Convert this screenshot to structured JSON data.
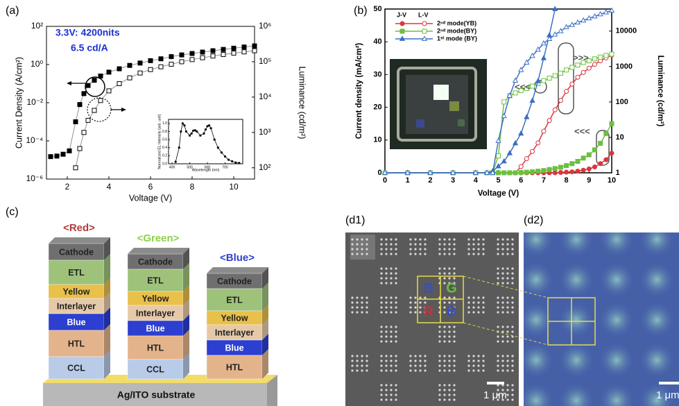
{
  "panel_labels": [
    "(a)",
    "(b)",
    "(c)",
    "(d1)",
    "(d2)"
  ],
  "chart_data": [
    {
      "type": "line",
      "xlabel": "Voltage (V)",
      "ylabel": "Current Density (A/cm²)",
      "y2label": "Luminance (cd/m²)",
      "annotations": [
        "3.3V: 4200nits",
        "6.5 cd/A"
      ],
      "annotation_color": "#1a2fd6",
      "x": [
        1.2,
        1.5,
        1.8,
        2.1,
        2.4,
        2.6,
        2.8,
        3.0,
        3.3,
        3.6,
        4.0,
        4.5,
        5.0,
        5.5,
        6.0,
        6.5,
        7.0,
        7.5,
        8.0,
        8.5,
        9.0,
        9.5,
        10.0,
        10.5,
        11.0
      ],
      "xlim": [
        1,
        11
      ],
      "xticks": [
        2,
        4,
        6,
        8,
        10
      ],
      "ylog": true,
      "ylim": [
        1e-06,
        100
      ],
      "yticks": [
        {
          "value": 1e-06,
          "label": "10⁻⁶"
        },
        {
          "value": 0.0001,
          "label": "10⁻⁴"
        },
        {
          "value": 0.01,
          "label": "10⁻²"
        },
        {
          "value": 1,
          "label": "10⁰"
        },
        {
          "value": 100,
          "label": "10²"
        }
      ],
      "y2log": true,
      "y2lim": [
        48,
        1000000
      ],
      "y2ticks": [
        {
          "value": 100,
          "label": "10²"
        },
        {
          "value": 1000,
          "label": "10³"
        },
        {
          "value": 10000,
          "label": "10⁴"
        },
        {
          "value": 100000,
          "label": "10⁵"
        },
        {
          "value": 1000000,
          "label": "10⁶"
        }
      ],
      "series": [
        {
          "color": "#000000",
          "line_color": "#777777",
          "marker": "square",
          "values": [
            1.5e-05,
            1.6e-05,
            2e-05,
            3e-05,
            0.001,
            0.008,
            0.03,
            0.08,
            0.15,
            0.25,
            0.4,
            0.6,
            0.9,
            1.2,
            1.6,
            2,
            2.6,
            3.2,
            3.8,
            4.5,
            5.3,
            6.2,
            7.2,
            8.3,
            9.5
          ],
          "luminance_values": [
            null,
            null,
            null,
            null,
            100,
            350,
            1000,
            2200,
            4200,
            8000,
            15000,
            24000,
            35000,
            48000,
            60000,
            72000,
            85000,
            100000,
            115000,
            130000,
            145000,
            160000,
            175000,
            190000,
            205000
          ]
        }
      ]
    },
    {
      "type": "line",
      "xlabel": "Voltage (V)",
      "ylabel": "Current density (mA/cm²)",
      "y2label": "Luminance (cd/m²)",
      "legend_headers": [
        "J-V",
        "L-V"
      ],
      "annotations": [
        "<<<",
        ">>>",
        "<<<"
      ],
      "annotation_color": "#555555",
      "x": [
        0,
        1,
        2,
        3,
        4,
        4.5,
        4.75,
        5,
        5.25,
        5.5,
        5.75,
        6,
        6.25,
        6.5,
        6.75,
        7,
        7.25,
        7.5,
        7.75,
        8,
        8.25,
        8.5,
        8.75,
        9,
        9.25,
        9.5,
        9.75,
        10
      ],
      "xlim": [
        0,
        10
      ],
      "xticks": [
        0,
        1,
        2,
        3,
        4,
        5,
        6,
        7,
        8,
        9,
        10
      ],
      "ylim": [
        0,
        50
      ],
      "yticks": [
        0,
        10,
        20,
        30,
        40,
        50
      ],
      "y2log": true,
      "y2lim": [
        1,
        42000
      ],
      "y2ticks": [
        1,
        10,
        100,
        1000,
        10000
      ],
      "series": [
        {
          "name": "2ⁿᵈ mode(YB)",
          "color": "#d9363e",
          "marker": "circle",
          "values": [
            0,
            0,
            0,
            0,
            0,
            0,
            0,
            0,
            0,
            0,
            0,
            0,
            0,
            0,
            0,
            0,
            0,
            0,
            0.1,
            0.2,
            0.3,
            0.5,
            0.8,
            1.2,
            1.8,
            2.8,
            4,
            6
          ],
          "luminance_values": [
            1,
            1,
            1,
            1,
            1,
            1,
            1,
            1,
            1,
            1,
            1,
            1.5,
            2.5,
            4,
            7,
            15,
            30,
            60,
            110,
            200,
            320,
            500,
            680,
            900,
            1150,
            1450,
            1750,
            2100
          ]
        },
        {
          "name": "2ⁿᵈ mode(BY)",
          "color": "#6cbf3f",
          "marker": "square",
          "values": [
            0,
            0,
            0,
            0,
            0,
            0,
            0,
            0,
            0,
            0,
            0,
            0.1,
            0.2,
            0.3,
            0.5,
            0.7,
            1,
            1.3,
            1.7,
            2.2,
            2.8,
            3.5,
            4.5,
            5.5,
            7,
            9,
            12,
            15
          ],
          "luminance_values": [
            1,
            1,
            1,
            1,
            1,
            1,
            1,
            3,
            100,
            150,
            180,
            210,
            240,
            280,
            330,
            400,
            470,
            550,
            650,
            800,
            950,
            1100,
            1300,
            1450,
            1650,
            1850,
            2050,
            2250
          ]
        },
        {
          "name": "1ˢᵗ mode (BY)",
          "color": "#3b6fc4",
          "marker": "triangle",
          "values": [
            0,
            0,
            0,
            0,
            0,
            0,
            0.5,
            2,
            3.5,
            6,
            9,
            12,
            17,
            22,
            28,
            35,
            42,
            50,
            null,
            null,
            null,
            null,
            null,
            null,
            null,
            null,
            null,
            null
          ],
          "luminance_values": [
            1,
            1,
            1,
            1,
            1,
            1,
            1,
            8,
            40,
            150,
            400,
            800,
            1300,
            2000,
            3000,
            4500,
            6000,
            8000,
            10000,
            13000,
            15000,
            17500,
            20000,
            23000,
            26000,
            30000,
            34000,
            38000
          ]
        }
      ]
    },
    {
      "type": "line",
      "xlabel": "Wavelength (nm)",
      "ylabel": "Normalized EL Intensity (arb. unit)",
      "x": [
        420,
        440,
        450,
        460,
        470,
        480,
        500,
        510,
        520,
        530,
        540,
        560,
        580,
        590,
        600,
        610,
        620,
        640,
        660,
        680,
        700,
        720,
        740,
        760,
        780
      ],
      "xlim": [
        380,
        800
      ],
      "xticks": [
        400,
        500,
        600,
        700
      ],
      "ylim": [
        0,
        1.1
      ],
      "yticks": [
        {
          "value": 0,
          "label": "0.0"
        },
        {
          "value": 0.2,
          "label": "0.2"
        },
        {
          "value": 0.4,
          "label": "0.4"
        },
        {
          "value": 0.6,
          "label": "0.6"
        },
        {
          "value": 0.8,
          "label": "0.8"
        },
        {
          "value": 1,
          "label": "1.0"
        }
      ],
      "series": [
        {
          "color": "#000000",
          "line_color": "#000000",
          "marker": "circle",
          "values": [
            0.05,
            0.4,
            0.8,
            1.0,
            0.95,
            0.8,
            0.7,
            0.75,
            0.82,
            0.83,
            0.8,
            0.7,
            0.75,
            0.85,
            0.93,
            0.95,
            0.88,
            0.6,
            0.4,
            0.28,
            0.18,
            0.1,
            0.06,
            0.03,
            0.02
          ]
        }
      ]
    }
  ],
  "stack_diagram": {
    "columns": [
      {
        "title": "<Red>",
        "title_color": "#b03a3a",
        "layers": [
          {
            "label": "Cathode",
            "color": "#6f6f6f"
          },
          {
            "label": "ETL",
            "color": "#9ec27a"
          },
          {
            "label": "Yellow",
            "color": "#e8c04a"
          },
          {
            "label": "Interlayer",
            "color": "#e6c9a8"
          },
          {
            "label": "Blue",
            "color": "#2c3fd0"
          },
          {
            "label": "HTL",
            "color": "#e3b48c"
          },
          {
            "label": "CCL",
            "color": "#b8cbe8"
          }
        ]
      },
      {
        "title": "<Green>",
        "title_color": "#8ed04a",
        "layers": [
          {
            "label": "Cathode",
            "color": "#6f6f6f"
          },
          {
            "label": "ETL",
            "color": "#9ec27a"
          },
          {
            "label": "Yellow",
            "color": "#e8c04a"
          },
          {
            "label": "Interlayer",
            "color": "#e6c9a8"
          },
          {
            "label": "Blue",
            "color": "#2c3fd0"
          },
          {
            "label": "HTL",
            "color": "#e3b48c"
          },
          {
            "label": "CCL",
            "color": "#b8cbe8"
          }
        ]
      },
      {
        "title": "<Blue>",
        "title_color": "#2c3fd0",
        "layers": [
          {
            "label": "Cathode",
            "color": "#6f6f6f"
          },
          {
            "label": "ETL",
            "color": "#9ec27a"
          },
          {
            "label": "Yellow",
            "color": "#e8c04a"
          },
          {
            "label": "Interlayer",
            "color": "#e6c9a8"
          },
          {
            "label": "Blue",
            "color": "#2c3fd0"
          },
          {
            "label": "HTL",
            "color": "#e3b48c"
          }
        ]
      }
    ],
    "substrate": "Ag/ITO substrate"
  },
  "micrographs": {
    "d1": {
      "cells": [
        {
          "label": "B",
          "color": "#3a4fbf"
        },
        {
          "label": "G",
          "color": "#6cbf3f"
        },
        {
          "label": "R",
          "color": "#c8323a"
        },
        {
          "label": "B",
          "color": "#3a4fbf"
        }
      ],
      "scale_bar": "1 μm"
    },
    "d2": {
      "scale_bar": "1 μm"
    }
  }
}
